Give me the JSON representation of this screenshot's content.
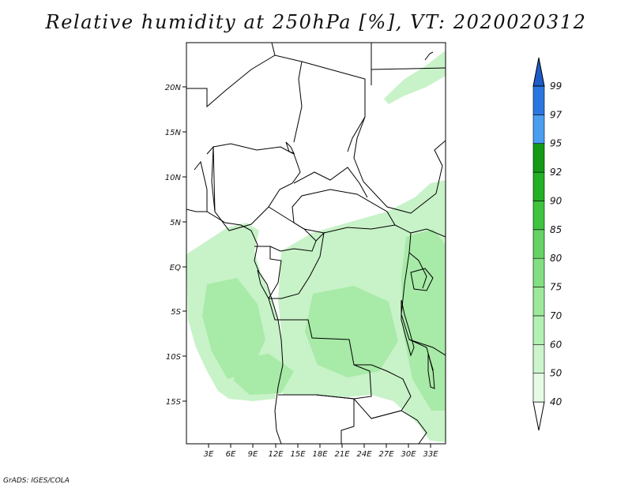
{
  "title": "Relative humidity at 250hPa [%], VT: 2020020312",
  "credit": "GrADS: IGES/COLA",
  "map": {
    "lon_range": [
      0,
      35
    ],
    "lat_range": [
      -20,
      25
    ],
    "lon_ticks": [
      "3E",
      "6E",
      "9E",
      "12E",
      "15E",
      "18E",
      "21E",
      "24E",
      "27E",
      "30E",
      "33E"
    ],
    "lat_ticks": [
      "20N",
      "15N",
      "10N",
      "5N",
      "EQ",
      "5S",
      "10S",
      "15S"
    ]
  },
  "colorbar": {
    "levels": [
      "40",
      "50",
      "60",
      "70",
      "75",
      "80",
      "85",
      "90",
      "92",
      "95",
      "97",
      "99"
    ],
    "colors": [
      "#ffffff",
      "#e6fbe6",
      "#cdf5cd",
      "#b4f0b4",
      "#9ce99c",
      "#82e082",
      "#64d364",
      "#3ec43e",
      "#24b024",
      "#149a14",
      "#4a9ef0",
      "#2878e0",
      "#1c5cc8"
    ]
  }
}
